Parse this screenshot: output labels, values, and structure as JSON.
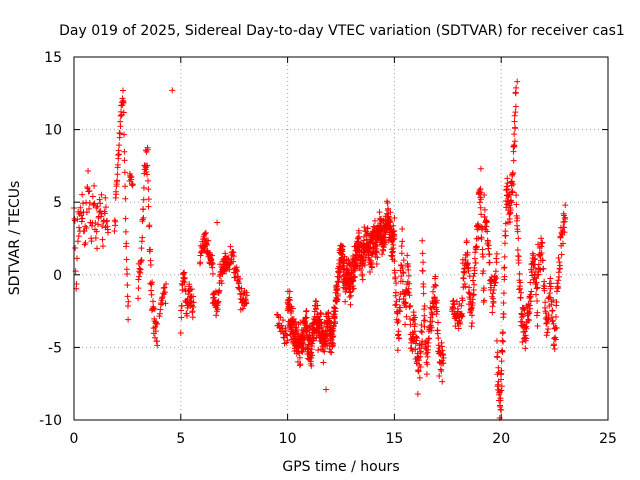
{
  "chart_data": {
    "type": "scatter",
    "title": "Day 019 of 2025, Sidereal Day-to-day VTEC variation (SDTVAR) for receiver cas1",
    "xlabel": "GPS time / hours",
    "ylabel": "SDTVAR / TECUs",
    "xlim": [
      0,
      25
    ],
    "ylim": [
      -10,
      15
    ],
    "xticks": [
      0,
      5,
      10,
      15,
      20,
      25
    ],
    "yticks": [
      -10,
      -5,
      0,
      5,
      10,
      15
    ],
    "grid": true,
    "marker": "+",
    "color": "#ff0000",
    "segments": [
      {
        "t0": 0.0,
        "t1": 1.6,
        "dt": 0.02,
        "anchors": [
          [
            0.0,
            5.5
          ],
          [
            0.1,
            -0.5
          ],
          [
            0.2,
            3.5
          ],
          [
            0.35,
            5
          ],
          [
            0.5,
            2
          ],
          [
            0.65,
            6.5
          ],
          [
            0.8,
            3
          ],
          [
            0.95,
            5.5
          ],
          [
            1.05,
            2.5
          ],
          [
            1.2,
            4.5
          ],
          [
            1.35,
            3
          ],
          [
            1.5,
            5
          ],
          [
            1.6,
            3.5
          ]
        ],
        "jitter": 1.4
      },
      {
        "t0": 1.9,
        "t1": 2.55,
        "dt": 0.012,
        "anchors": [
          [
            1.9,
            3
          ],
          [
            2.05,
            8
          ],
          [
            2.2,
            11
          ],
          [
            2.32,
            12.4
          ],
          [
            2.4,
            5
          ],
          [
            2.5,
            -1
          ],
          [
            2.55,
            -3
          ]
        ],
        "jitter": 0.8
      },
      {
        "t0": 2.6,
        "t1": 2.75,
        "dt": 0.015,
        "anchors": [
          [
            2.6,
            6.8
          ],
          [
            2.75,
            6.5
          ]
        ],
        "jitter": 0.5
      },
      {
        "t0": 3.0,
        "t1": 3.9,
        "dt": 0.012,
        "anchors": [
          [
            3.0,
            -1
          ],
          [
            3.15,
            1
          ],
          [
            3.3,
            7
          ],
          [
            3.45,
            8
          ],
          [
            3.55,
            2
          ],
          [
            3.65,
            -2
          ],
          [
            3.75,
            -3
          ],
          [
            3.85,
            -3.5
          ],
          [
            3.9,
            -4
          ]
        ],
        "jitter": 1.2
      },
      {
        "t0": 4.0,
        "t1": 4.3,
        "dt": 0.02,
        "anchors": [
          [
            4.0,
            -2
          ],
          [
            4.3,
            -1.5
          ]
        ],
        "jitter": 0.8
      },
      {
        "t0": 5.0,
        "t1": 5.6,
        "dt": 0.012,
        "anchors": [
          [
            5.0,
            -3.5
          ],
          [
            5.1,
            0
          ],
          [
            5.3,
            -2
          ],
          [
            5.45,
            -1
          ],
          [
            5.6,
            -2.5
          ]
        ],
        "jitter": 1.0
      },
      {
        "t0": 5.9,
        "t1": 6.5,
        "dt": 0.012,
        "anchors": [
          [
            5.9,
            1
          ],
          [
            6.1,
            2.5
          ],
          [
            6.3,
            1.5
          ],
          [
            6.5,
            0.5
          ]
        ],
        "jitter": 0.7
      },
      {
        "t0": 6.5,
        "t1": 7.1,
        "dt": 0.012,
        "anchors": [
          [
            6.5,
            -1
          ],
          [
            6.7,
            -2.5
          ],
          [
            6.85,
            0
          ],
          [
            7.1,
            1
          ]
        ],
        "jitter": 0.8
      },
      {
        "t0": 7.0,
        "t1": 8.1,
        "dt": 0.015,
        "anchors": [
          [
            7.0,
            0.5
          ],
          [
            7.4,
            1.5
          ],
          [
            7.6,
            0
          ],
          [
            7.75,
            -1
          ],
          [
            7.9,
            -2
          ],
          [
            8.1,
            -1.5
          ]
        ],
        "jitter": 0.8
      },
      {
        "t0": 9.5,
        "t1": 10.0,
        "dt": 0.02,
        "anchors": [
          [
            9.5,
            -3
          ],
          [
            10.0,
            -4.5
          ]
        ],
        "jitter": 0.6
      },
      {
        "t0": 10.0,
        "t1": 11.5,
        "dt": 0.006,
        "anchors": [
          [
            10.0,
            -2
          ],
          [
            10.3,
            -4
          ],
          [
            10.6,
            -5
          ],
          [
            10.9,
            -3.5
          ],
          [
            11.1,
            -5.5
          ],
          [
            11.3,
            -2.5
          ],
          [
            11.5,
            -4
          ]
        ],
        "jitter": 1.4
      },
      {
        "t0": 11.5,
        "t1": 12.9,
        "dt": 0.006,
        "anchors": [
          [
            11.5,
            -3
          ],
          [
            11.7,
            -5
          ],
          [
            11.9,
            -3
          ],
          [
            12.1,
            -4.5
          ],
          [
            12.3,
            -1
          ],
          [
            12.5,
            1.5
          ],
          [
            12.7,
            -0.5
          ],
          [
            12.9,
            0.5
          ]
        ],
        "jitter": 1.3
      },
      {
        "t0": 12.9,
        "t1": 14.1,
        "dt": 0.006,
        "anchors": [
          [
            12.9,
            -1
          ],
          [
            13.1,
            0.5
          ],
          [
            13.3,
            2
          ],
          [
            13.5,
            1
          ],
          [
            13.7,
            2.5
          ],
          [
            13.9,
            1.5
          ],
          [
            14.1,
            3
          ]
        ],
        "jitter": 1.3
      },
      {
        "t0": 14.1,
        "t1": 15.0,
        "dt": 0.006,
        "anchors": [
          [
            14.1,
            1.5
          ],
          [
            14.3,
            3
          ],
          [
            14.5,
            2.5
          ],
          [
            14.7,
            4
          ],
          [
            14.9,
            2
          ],
          [
            15.0,
            3
          ]
        ],
        "jitter": 1.2
      },
      {
        "t0": 15.0,
        "t1": 15.6,
        "dt": 0.01,
        "anchors": [
          [
            15.0,
            0
          ],
          [
            15.2,
            -4
          ],
          [
            15.35,
            2
          ],
          [
            15.5,
            -3
          ],
          [
            15.6,
            -1
          ]
        ],
        "jitter": 1.6
      },
      {
        "t0": 15.6,
        "t1": 16.3,
        "dt": 0.01,
        "anchors": [
          [
            15.6,
            1
          ],
          [
            15.8,
            -5
          ],
          [
            15.95,
            -3
          ],
          [
            16.1,
            -7
          ],
          [
            16.3,
            -4
          ]
        ],
        "jitter": 1.4
      },
      {
        "t0": 16.3,
        "t1": 17.3,
        "dt": 0.01,
        "anchors": [
          [
            16.3,
            1.5
          ],
          [
            16.5,
            -6
          ],
          [
            16.7,
            -3
          ],
          [
            16.9,
            -1
          ],
          [
            17.1,
            -5.5
          ],
          [
            17.3,
            -6
          ]
        ],
        "jitter": 1.3
      },
      {
        "t0": 17.7,
        "t1": 18.2,
        "dt": 0.012,
        "anchors": [
          [
            17.7,
            -2
          ],
          [
            17.9,
            -3
          ],
          [
            18.2,
            -2.5
          ]
        ],
        "jitter": 0.8
      },
      {
        "t0": 18.2,
        "t1": 19.2,
        "dt": 0.01,
        "anchors": [
          [
            18.2,
            0
          ],
          [
            18.4,
            1.5
          ],
          [
            18.6,
            -3
          ],
          [
            18.8,
            1
          ],
          [
            19.0,
            6
          ],
          [
            19.1,
            3
          ],
          [
            19.2,
            -2
          ]
        ],
        "jitter": 1.4
      },
      {
        "t0": 19.2,
        "t1": 19.8,
        "dt": 0.012,
        "anchors": [
          [
            19.2,
            5
          ],
          [
            19.4,
            2
          ],
          [
            19.6,
            -2
          ],
          [
            19.8,
            1
          ]
        ],
        "jitter": 1.2
      },
      {
        "t0": 19.8,
        "t1": 20.7,
        "dt": 0.008,
        "anchors": [
          [
            19.8,
            -6
          ],
          [
            19.95,
            -9
          ],
          [
            20.1,
            -3
          ],
          [
            20.25,
            6.5
          ],
          [
            20.4,
            4
          ],
          [
            20.55,
            7
          ],
          [
            20.7,
            12.5
          ]
        ],
        "jitter": 1.5
      },
      {
        "t0": 20.7,
        "t1": 21.7,
        "dt": 0.01,
        "anchors": [
          [
            20.7,
            5
          ],
          [
            20.9,
            -2
          ],
          [
            21.1,
            -4
          ],
          [
            21.3,
            -2.5
          ],
          [
            21.5,
            1
          ],
          [
            21.7,
            -2
          ]
        ],
        "jitter": 1.4
      },
      {
        "t0": 21.7,
        "t1": 23.0,
        "dt": 0.012,
        "anchors": [
          [
            21.7,
            0
          ],
          [
            21.9,
            2
          ],
          [
            22.1,
            -3
          ],
          [
            22.3,
            -1
          ],
          [
            22.5,
            -5
          ],
          [
            22.7,
            1
          ],
          [
            22.9,
            3
          ],
          [
            23.0,
            4.5
          ]
        ],
        "jitter": 1.5
      }
    ],
    "outliers": [
      [
        4.6,
        12.7
      ],
      [
        6.7,
        3.6
      ],
      [
        11.8,
        -7.9
      ],
      [
        20.0,
        -9.3
      ],
      [
        19.05,
        7.3
      ],
      [
        20.75,
        13.3
      ],
      [
        23.0,
        4.8
      ]
    ]
  }
}
